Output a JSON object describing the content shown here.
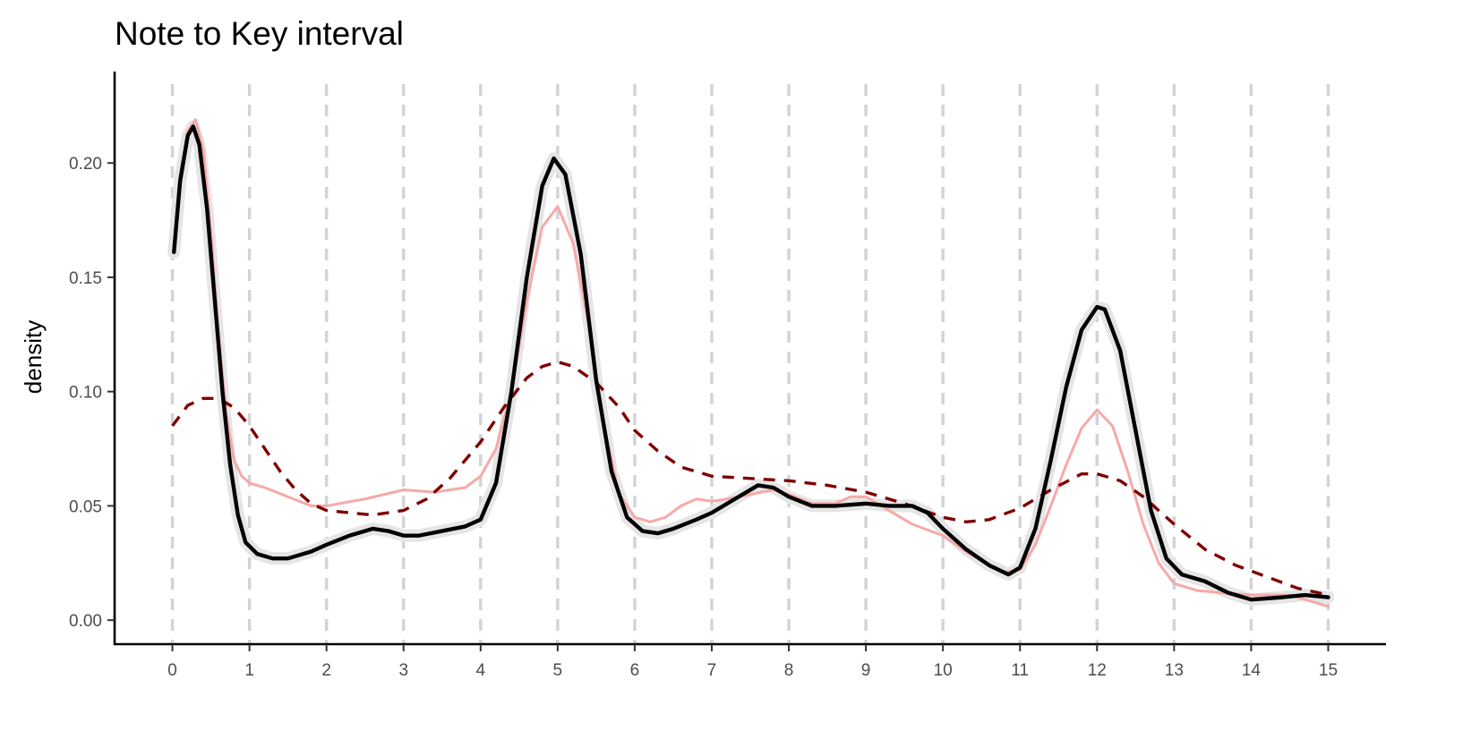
{
  "chart_data": {
    "type": "line",
    "title": "Note to Key interval",
    "xlabel": "",
    "ylabel": "density",
    "xlim": [
      -0.75,
      15.75
    ],
    "ylim": [
      -0.0105,
      0.24
    ],
    "x_ticks": [
      "0",
      "1",
      "2",
      "3",
      "4",
      "5",
      "6",
      "7",
      "8",
      "9",
      "10",
      "11",
      "12",
      "13",
      "14",
      "15"
    ],
    "y_ticks": [
      "0.00",
      "0.05",
      "0.10",
      "0.15",
      "0.20"
    ],
    "grid": "vertical dashed lines at integer x",
    "legend": "none",
    "series": [
      {
        "style": "solid",
        "color": "#f7a8a8",
        "points": [
          [
            0.02,
            0.163
          ],
          [
            0.1,
            0.195
          ],
          [
            0.2,
            0.214
          ],
          [
            0.3,
            0.219
          ],
          [
            0.4,
            0.206
          ],
          [
            0.5,
            0.17
          ],
          [
            0.6,
            0.125
          ],
          [
            0.7,
            0.09
          ],
          [
            0.8,
            0.07
          ],
          [
            0.9,
            0.063
          ],
          [
            1.0,
            0.06
          ],
          [
            1.2,
            0.058
          ],
          [
            1.5,
            0.054
          ],
          [
            1.8,
            0.05
          ],
          [
            2.0,
            0.05
          ],
          [
            2.5,
            0.053
          ],
          [
            3.0,
            0.057
          ],
          [
            3.4,
            0.056
          ],
          [
            3.8,
            0.058
          ],
          [
            4.0,
            0.063
          ],
          [
            4.2,
            0.075
          ],
          [
            4.4,
            0.1
          ],
          [
            4.6,
            0.14
          ],
          [
            4.8,
            0.172
          ],
          [
            5.0,
            0.181
          ],
          [
            5.2,
            0.165
          ],
          [
            5.4,
            0.13
          ],
          [
            5.6,
            0.085
          ],
          [
            5.8,
            0.055
          ],
          [
            6.0,
            0.045
          ],
          [
            6.2,
            0.043
          ],
          [
            6.4,
            0.045
          ],
          [
            6.6,
            0.05
          ],
          [
            6.8,
            0.053
          ],
          [
            7.0,
            0.052
          ],
          [
            7.2,
            0.053
          ],
          [
            7.5,
            0.055
          ],
          [
            7.8,
            0.057
          ],
          [
            8.0,
            0.055
          ],
          [
            8.3,
            0.051
          ],
          [
            8.6,
            0.051
          ],
          [
            8.8,
            0.054
          ],
          [
            9.0,
            0.054
          ],
          [
            9.3,
            0.048
          ],
          [
            9.6,
            0.042
          ],
          [
            10.0,
            0.037
          ],
          [
            10.3,
            0.03
          ],
          [
            10.6,
            0.024
          ],
          [
            10.8,
            0.021
          ],
          [
            11.0,
            0.022
          ],
          [
            11.2,
            0.033
          ],
          [
            11.4,
            0.05
          ],
          [
            11.6,
            0.068
          ],
          [
            11.8,
            0.084
          ],
          [
            12.0,
            0.092
          ],
          [
            12.2,
            0.085
          ],
          [
            12.4,
            0.065
          ],
          [
            12.6,
            0.042
          ],
          [
            12.8,
            0.025
          ],
          [
            13.0,
            0.016
          ],
          [
            13.3,
            0.013
          ],
          [
            13.6,
            0.012
          ],
          [
            14.0,
            0.011
          ],
          [
            14.5,
            0.011
          ],
          [
            15.0,
            0.006
          ]
        ]
      },
      {
        "style": "dashed",
        "color": "#7f0000",
        "points": [
          [
            0.0,
            0.085
          ],
          [
            0.2,
            0.094
          ],
          [
            0.4,
            0.097
          ],
          [
            0.6,
            0.097
          ],
          [
            0.8,
            0.093
          ],
          [
            1.0,
            0.085
          ],
          [
            1.2,
            0.075
          ],
          [
            1.4,
            0.065
          ],
          [
            1.6,
            0.057
          ],
          [
            1.8,
            0.051
          ],
          [
            2.0,
            0.048
          ],
          [
            2.3,
            0.047
          ],
          [
            2.6,
            0.046
          ],
          [
            3.0,
            0.048
          ],
          [
            3.3,
            0.053
          ],
          [
            3.6,
            0.062
          ],
          [
            4.0,
            0.078
          ],
          [
            4.3,
            0.093
          ],
          [
            4.6,
            0.106
          ],
          [
            4.8,
            0.111
          ],
          [
            5.0,
            0.113
          ],
          [
            5.2,
            0.111
          ],
          [
            5.5,
            0.104
          ],
          [
            5.8,
            0.093
          ],
          [
            6.0,
            0.083
          ],
          [
            6.3,
            0.074
          ],
          [
            6.6,
            0.067
          ],
          [
            7.0,
            0.063
          ],
          [
            7.5,
            0.062
          ],
          [
            8.0,
            0.061
          ],
          [
            8.5,
            0.059
          ],
          [
            9.0,
            0.056
          ],
          [
            9.5,
            0.051
          ],
          [
            10.0,
            0.045
          ],
          [
            10.3,
            0.043
          ],
          [
            10.6,
            0.044
          ],
          [
            11.0,
            0.049
          ],
          [
            11.4,
            0.057
          ],
          [
            11.8,
            0.064
          ],
          [
            12.0,
            0.064
          ],
          [
            12.3,
            0.061
          ],
          [
            12.6,
            0.054
          ],
          [
            13.0,
            0.042
          ],
          [
            13.4,
            0.031
          ],
          [
            13.8,
            0.024
          ],
          [
            14.2,
            0.019
          ],
          [
            14.6,
            0.014
          ],
          [
            15.0,
            0.011
          ]
        ]
      },
      {
        "style": "solid",
        "color": "#000000",
        "confidence_band_color": "#e5e5e5",
        "points": [
          [
            0.02,
            0.161
          ],
          [
            0.1,
            0.192
          ],
          [
            0.2,
            0.212
          ],
          [
            0.27,
            0.216
          ],
          [
            0.35,
            0.208
          ],
          [
            0.45,
            0.18
          ],
          [
            0.55,
            0.14
          ],
          [
            0.65,
            0.1
          ],
          [
            0.75,
            0.068
          ],
          [
            0.85,
            0.046
          ],
          [
            0.95,
            0.034
          ],
          [
            1.1,
            0.029
          ],
          [
            1.3,
            0.027
          ],
          [
            1.5,
            0.027
          ],
          [
            1.8,
            0.03
          ],
          [
            2.0,
            0.033
          ],
          [
            2.3,
            0.037
          ],
          [
            2.6,
            0.04
          ],
          [
            2.8,
            0.039
          ],
          [
            3.0,
            0.037
          ],
          [
            3.2,
            0.037
          ],
          [
            3.5,
            0.039
          ],
          [
            3.8,
            0.041
          ],
          [
            4.0,
            0.044
          ],
          [
            4.2,
            0.06
          ],
          [
            4.4,
            0.1
          ],
          [
            4.6,
            0.15
          ],
          [
            4.8,
            0.19
          ],
          [
            4.95,
            0.202
          ],
          [
            5.1,
            0.195
          ],
          [
            5.3,
            0.16
          ],
          [
            5.5,
            0.105
          ],
          [
            5.7,
            0.065
          ],
          [
            5.9,
            0.045
          ],
          [
            6.1,
            0.039
          ],
          [
            6.3,
            0.038
          ],
          [
            6.5,
            0.04
          ],
          [
            6.8,
            0.044
          ],
          [
            7.0,
            0.047
          ],
          [
            7.3,
            0.053
          ],
          [
            7.6,
            0.059
          ],
          [
            7.8,
            0.058
          ],
          [
            8.0,
            0.054
          ],
          [
            8.3,
            0.05
          ],
          [
            8.6,
            0.05
          ],
          [
            9.0,
            0.051
          ],
          [
            9.3,
            0.05
          ],
          [
            9.6,
            0.05
          ],
          [
            9.8,
            0.047
          ],
          [
            10.0,
            0.04
          ],
          [
            10.3,
            0.031
          ],
          [
            10.6,
            0.024
          ],
          [
            10.85,
            0.02
          ],
          [
            11.0,
            0.023
          ],
          [
            11.2,
            0.04
          ],
          [
            11.4,
            0.07
          ],
          [
            11.6,
            0.102
          ],
          [
            11.8,
            0.127
          ],
          [
            12.0,
            0.137
          ],
          [
            12.1,
            0.136
          ],
          [
            12.3,
            0.118
          ],
          [
            12.5,
            0.083
          ],
          [
            12.7,
            0.048
          ],
          [
            12.9,
            0.027
          ],
          [
            13.1,
            0.02
          ],
          [
            13.4,
            0.017
          ],
          [
            13.7,
            0.012
          ],
          [
            14.0,
            0.009
          ],
          [
            14.4,
            0.01
          ],
          [
            14.7,
            0.011
          ],
          [
            15.0,
            0.01
          ]
        ]
      }
    ]
  }
}
